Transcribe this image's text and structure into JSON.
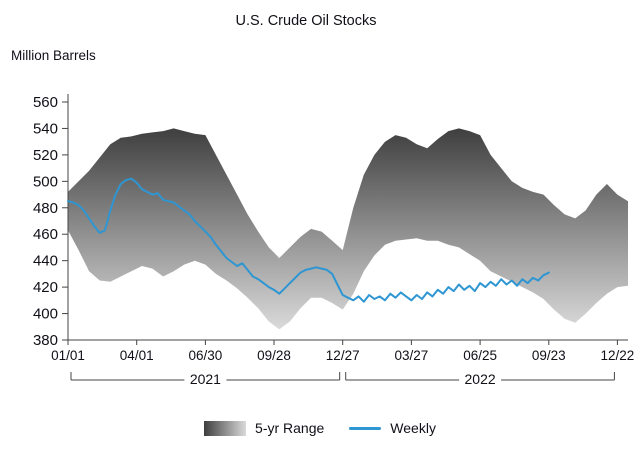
{
  "title": "U.S. Crude Oil Stocks",
  "y_axis_label": "Million Barrels",
  "legend": {
    "range_label": "5-yr Range",
    "weekly_label": "Weekly"
  },
  "colors": {
    "weekly_line": "#2e96d2",
    "band_top": "#3f3f3f",
    "band_bottom": "#dadada",
    "axis": "#444444",
    "text": "#111111"
  },
  "chart_data": {
    "type": "line",
    "title": "U.S. Crude Oil Stocks",
    "xlabel": "",
    "ylabel": "Million Barrels",
    "ylim": [
      380,
      560
    ],
    "yticks": [
      380,
      400,
      420,
      440,
      460,
      480,
      500,
      520,
      540,
      560
    ],
    "xlim": [
      0,
      106
    ],
    "x_unit": "weeks since 2021-01-01",
    "grid": false,
    "legend_position": "bottom",
    "xticks": [
      {
        "pos": 0,
        "label": "01/01"
      },
      {
        "pos": 13,
        "label": "04/01"
      },
      {
        "pos": 26,
        "label": "06/30"
      },
      {
        "pos": 39,
        "label": "09/28"
      },
      {
        "pos": 52,
        "label": "12/27"
      },
      {
        "pos": 65,
        "label": "03/27"
      },
      {
        "pos": 78,
        "label": "06/25"
      },
      {
        "pos": 91,
        "label": "09/23"
      },
      {
        "pos": 104,
        "label": "12/22"
      }
    ],
    "year_spans": [
      {
        "label": "2021",
        "from": 0,
        "to": 52
      },
      {
        "label": "2022",
        "from": 52,
        "to": 104
      }
    ],
    "band": {
      "name": "5-yr Range",
      "x_start": 0,
      "x_step": 2,
      "upper": [
        492,
        500,
        508,
        518,
        528,
        533,
        534,
        536,
        537,
        538,
        540,
        538,
        536,
        535,
        520,
        505,
        490,
        475,
        462,
        450,
        442,
        450,
        458,
        464,
        462,
        455,
        448,
        480,
        505,
        520,
        530,
        535,
        533,
        528,
        525,
        532,
        538,
        540,
        538,
        535,
        520,
        510,
        500,
        495,
        492,
        490,
        482,
        475,
        472,
        478,
        490,
        498,
        490,
        485
      ],
      "lower": [
        463,
        448,
        432,
        425,
        424,
        428,
        432,
        436,
        434,
        428,
        432,
        437,
        440,
        437,
        430,
        425,
        419,
        412,
        404,
        394,
        388,
        394,
        404,
        412,
        412,
        408,
        403,
        415,
        432,
        444,
        452,
        455,
        456,
        457,
        455,
        455,
        452,
        450,
        445,
        440,
        432,
        428,
        424,
        420,
        416,
        411,
        403,
        396,
        393,
        400,
        408,
        415,
        420,
        421
      ]
    },
    "series": [
      {
        "name": "Weekly",
        "x_start": 0,
        "x_step": 1,
        "values": [
          485,
          484,
          482,
          478,
          472,
          466,
          461,
          463,
          478,
          490,
          498,
          501,
          502,
          499,
          494,
          492,
          490,
          491,
          486,
          485,
          484,
          481,
          478,
          475,
          470,
          466,
          462,
          458,
          452,
          447,
          442,
          439,
          436,
          438,
          433,
          428,
          426,
          423,
          420,
          418,
          415,
          419,
          423,
          427,
          431,
          433,
          434,
          435,
          434,
          433,
          430,
          422,
          414,
          412,
          410,
          413,
          409,
          414,
          411,
          413,
          410,
          415,
          412,
          416,
          413,
          410,
          414,
          411,
          416,
          413,
          418,
          415,
          420,
          417,
          422,
          418,
          421,
          417,
          423,
          420,
          424,
          421,
          426,
          422,
          425,
          421,
          426,
          423,
          427,
          425,
          429,
          431
        ]
      }
    ]
  }
}
